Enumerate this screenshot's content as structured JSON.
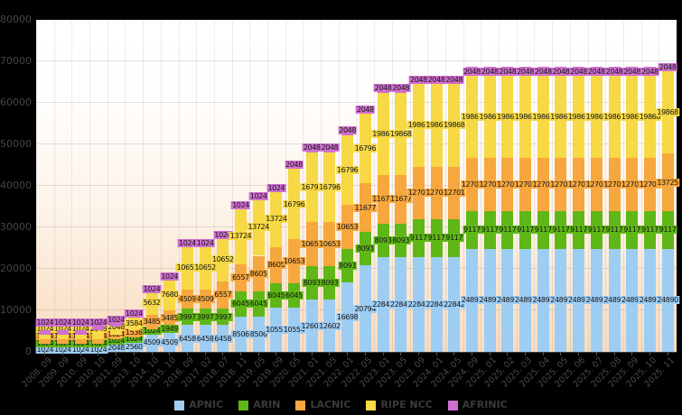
{
  "chart_data": {
    "type": "bar",
    "stacked": true,
    "title": "",
    "xlabel": "",
    "ylabel": "",
    "ylim": [
      0,
      80000
    ],
    "yticks": [
      0,
      10000,
      20000,
      30000,
      40000,
      50000,
      60000,
      70000,
      80000
    ],
    "grid": true,
    "legend_position": "bottom",
    "categories": [
      "2008. 09",
      "2009. 09",
      "2010. 09",
      "2010. 10",
      "2011. 09",
      "2013. 10",
      "2014. 10",
      "2015. 10",
      "2016. 09",
      "2017. 02",
      "2018. 07",
      "2018. 11",
      "2019. 05",
      "2019. 09",
      "2020. 05",
      "2021. 01",
      "2021. 05",
      "2022. 01",
      "2022. 05",
      "2023. 01",
      "2023. 05",
      "2023. 09",
      "2024. 01",
      "2024. 05",
      "2024. 09",
      "2025. 01",
      "2025. 02",
      "2025. 03",
      "2025. 04",
      "2025. 05",
      "2025. 06",
      "2025. 07",
      "2025. 08",
      "2025. 09",
      "2025. 10",
      "2025. 11"
    ],
    "series": [
      {
        "name": "APNIC",
        "color": "#9ecdf4",
        "values": [
          1024,
          1024,
          1024,
          1024,
          2048,
          2560,
          4509,
          4509,
          6458,
          6458,
          6458,
          8506,
          8506,
          10554,
          10554,
          12602,
          12602,
          16698,
          20794,
          22842,
          22842,
          22842,
          22842,
          22842,
          24890,
          24890,
          24890,
          24890,
          24890,
          24890,
          24890,
          24890,
          24890,
          24890,
          24890,
          24890
        ]
      },
      {
        "name": "ARIN",
        "color": "#5eb716",
        "values": [
          1024,
          1024,
          1024,
          1024,
          1024,
          1024,
          1024,
          1949,
          3997,
          3997,
          3997,
          6045,
          6045,
          6045,
          6045,
          8093,
          8093,
          8093,
          8093,
          8093,
          8093,
          9117,
          9117,
          9117,
          9117,
          9117,
          9117,
          9117,
          9117,
          9117,
          9117,
          9117,
          9117,
          9117,
          9117,
          9117
        ]
      },
      {
        "name": "LACNIC",
        "color": "#f6a73e",
        "values": [
          1024,
          1024,
          1024,
          1024,
          1024,
          1536,
          3485,
          3485,
          4509,
          4509,
          6557,
          6557,
          8605,
          8605,
          10653,
          10653,
          10653,
          10653,
          11677,
          11677,
          11677,
          12701,
          12701,
          12701,
          12701,
          12701,
          12701,
          12701,
          12701,
          12701,
          12701,
          12701,
          12701,
          12701,
          12701,
          13725
        ]
      },
      {
        "name": "RIPE NCC",
        "color": "#f7d845",
        "values": [
          1024,
          1024,
          1024,
          2048,
          2048,
          3584,
          5632,
          7680,
          10652,
          10652,
          10652,
          13724,
          13724,
          13724,
          16796,
          16796,
          16796,
          16796,
          16796,
          19868,
          19868,
          19868,
          19868,
          19868,
          19868,
          19868,
          19868,
          19868,
          19868,
          19868,
          19868,
          19868,
          19868,
          19868,
          19868,
          19868
        ]
      },
      {
        "name": "AFRINIC",
        "color": "#cf6fcf",
        "values": [
          1024,
          1024,
          1024,
          1024,
          1024,
          1024,
          1024,
          1024,
          1024,
          1024,
          1024,
          1024,
          1024,
          1024,
          2048,
          2048,
          2048,
          2048,
          2048,
          2048,
          2048,
          2048,
          2048,
          2048,
          2048,
          2048,
          2048,
          2048,
          2048,
          2048,
          2048,
          2048,
          2048,
          2048,
          2048,
          2048
        ]
      }
    ]
  },
  "legend": {
    "items": [
      "APNIC",
      "ARIN",
      "LACNIC",
      "RIPE NCC",
      "AFRINIC"
    ]
  },
  "colors": {
    "page_background": "#000000",
    "plot_gradient_top": "#ffffff",
    "plot_gradient_bottom": "#f8dcc2",
    "axis_text": "#4a4a4a",
    "axis_line": "#3f3f3f",
    "data_label_text": "#141414"
  }
}
